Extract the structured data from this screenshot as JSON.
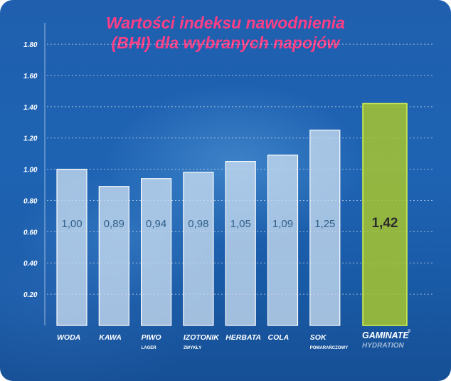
{
  "title_line1": "Wartości indeksu nawodnienia",
  "title_line2": "(BHI) dla wybranych napojów",
  "colors": {
    "title": "#ff3e86",
    "bar_fill": "#c9dcf0",
    "bar_stroke": "#ffffff",
    "highlight_fill": "#a8c52e",
    "highlight_stroke": "#d7f24a",
    "axis_text": "#ffffff",
    "value_text": "#2f5f88",
    "highlight_value_text": "#2c2c2c"
  },
  "chart_data": {
    "type": "bar",
    "title": "Wartości indeksu nawodnienia (BHI) dla wybranych napojów",
    "xlabel": "",
    "ylabel": "",
    "ylim": [
      0,
      1.8
    ],
    "yticks": [
      "0.20",
      "0.40",
      "0.60",
      "0.80",
      "1.00",
      "1.20",
      "1.40",
      "1.60",
      "1.80"
    ],
    "ytick_values": [
      0.2,
      0.4,
      0.6,
      0.8,
      1.0,
      1.2,
      1.4,
      1.6,
      1.8
    ],
    "grid": true,
    "categories": [
      {
        "label": "WODA",
        "sublabel": "",
        "value": 1.0,
        "value_label": "1,00",
        "highlight": false
      },
      {
        "label": "KAWA",
        "sublabel": "",
        "value": 0.89,
        "value_label": "0,89",
        "highlight": false
      },
      {
        "label": "PIWO",
        "sublabel": "LAGER",
        "value": 0.94,
        "value_label": "0,94",
        "highlight": false
      },
      {
        "label": "IZOTONIK",
        "sublabel": "ZWYKŁY",
        "value": 0.98,
        "value_label": "0,98",
        "highlight": false
      },
      {
        "label": "HERBATA",
        "sublabel": "",
        "value": 1.05,
        "value_label": "1,05",
        "highlight": false
      },
      {
        "label": "COLA",
        "sublabel": "",
        "value": 1.09,
        "value_label": "1,09",
        "highlight": false
      },
      {
        "label": "SOK",
        "sublabel": "POMARAŃCZOWY",
        "value": 1.25,
        "value_label": "1,25",
        "highlight": false
      },
      {
        "label": "GAMINATE",
        "sublabel": "HYDRATION",
        "value": 1.42,
        "value_label": "1,42",
        "highlight": true
      }
    ]
  },
  "brand": {
    "name": "GAMINATE",
    "mark": "®",
    "sub": "HYDRATION"
  }
}
